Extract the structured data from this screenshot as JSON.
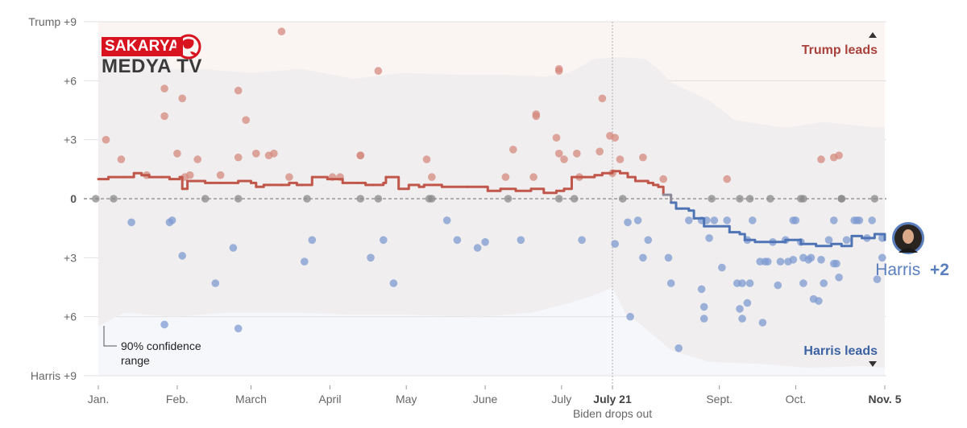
{
  "chart_data": {
    "type": "line",
    "title": "",
    "xlabel": "",
    "ylabel": "",
    "ylim": [
      -9,
      9
    ],
    "xlim_days": [
      0,
      309
    ],
    "y_ticks": [
      {
        "value": 9,
        "label": "Trump +9"
      },
      {
        "value": 6,
        "label": "+6"
      },
      {
        "value": 3,
        "label": "+3"
      },
      {
        "value": 0,
        "label": "0"
      },
      {
        "value": -3,
        "label": "+3"
      },
      {
        "value": -6,
        "label": "+6"
      },
      {
        "value": -9,
        "label": "Harris +9"
      }
    ],
    "x_ticks": [
      {
        "day": 0,
        "label": "Jan.",
        "bold": false
      },
      {
        "day": 31,
        "label": "Feb.",
        "bold": false
      },
      {
        "day": 60,
        "label": "March",
        "bold": false
      },
      {
        "day": 91,
        "label": "April",
        "bold": false
      },
      {
        "day": 121,
        "label": "May",
        "bold": false
      },
      {
        "day": 152,
        "label": "June",
        "bold": false
      },
      {
        "day": 182,
        "label": "July",
        "bold": false
      },
      {
        "day": 202,
        "label": "July 21",
        "bold": true,
        "sublabel": "Biden",
        "sublabel2": "drops out"
      },
      {
        "day": 244,
        "label": "Sept.",
        "bold": false
      },
      {
        "day": 274,
        "label": "Oct.",
        "bold": false
      },
      {
        "day": 309,
        "label": "Nov. 5",
        "bold": true
      }
    ],
    "annotations": {
      "trump_leads": "Trump leads",
      "harris_leads": "Harris leads",
      "ci_label_line1": "90% confidence",
      "ci_label_line2": "range",
      "current_name": "Harris",
      "current_value": "+2"
    },
    "colors": {
      "trump": "#c0574a",
      "harris": "#4f74b5",
      "trump_dot": "#d58a7f",
      "harris_dot": "#7f9bd1",
      "tie_dot": "#8a8a8a",
      "trump_bg": "#faf4f3",
      "harris_bg": "#f6f7fa",
      "band": "#efeded"
    },
    "average_line": [
      [
        0,
        1.0
      ],
      [
        3,
        1.0
      ],
      [
        4,
        1.1
      ],
      [
        10,
        1.1
      ],
      [
        14,
        1.3
      ],
      [
        17,
        1.2
      ],
      [
        20,
        1.1
      ],
      [
        25,
        1.1
      ],
      [
        28,
        1.0
      ],
      [
        32,
        1.1
      ],
      [
        33,
        0.5
      ],
      [
        35,
        0.9
      ],
      [
        38,
        0.9
      ],
      [
        42,
        0.8
      ],
      [
        48,
        0.8
      ],
      [
        55,
        0.9
      ],
      [
        60,
        0.8
      ],
      [
        62,
        0.6
      ],
      [
        65,
        0.7
      ],
      [
        72,
        0.7
      ],
      [
        75,
        0.8
      ],
      [
        78,
        0.7
      ],
      [
        80,
        0.7
      ],
      [
        84,
        1.1
      ],
      [
        90,
        1.0
      ],
      [
        96,
        0.8
      ],
      [
        102,
        0.8
      ],
      [
        105,
        0.7
      ],
      [
        108,
        0.7
      ],
      [
        112,
        0.8
      ],
      [
        113,
        1.1
      ],
      [
        118,
        0.5
      ],
      [
        122,
        0.7
      ],
      [
        126,
        0.6
      ],
      [
        128,
        0.7
      ],
      [
        135,
        0.6
      ],
      [
        145,
        0.6
      ],
      [
        152,
        0.6
      ],
      [
        153,
        0.4
      ],
      [
        158,
        0.5
      ],
      [
        164,
        0.4
      ],
      [
        170,
        0.5
      ],
      [
        175,
        0.3
      ],
      [
        180,
        0.4
      ],
      [
        183,
        0.5
      ],
      [
        186,
        1.1
      ],
      [
        190,
        1.1
      ],
      [
        195,
        1.2
      ],
      [
        198,
        1.3
      ],
      [
        202,
        1.4
      ],
      [
        205,
        1.3
      ],
      [
        208,
        1.1
      ],
      [
        211,
        0.9
      ],
      [
        216,
        0.8
      ],
      [
        218,
        0.7
      ],
      [
        220,
        0.6
      ],
      [
        222,
        0.2
      ],
      [
        225,
        -0.2
      ],
      [
        227,
        -0.5
      ],
      [
        232,
        -0.6
      ],
      [
        234,
        -1.0
      ],
      [
        238,
        -1.4
      ],
      [
        243,
        -1.4
      ],
      [
        248,
        -1.7
      ],
      [
        252,
        -1.8
      ],
      [
        254,
        -2.1
      ],
      [
        258,
        -2.2
      ],
      [
        265,
        -2.2
      ],
      [
        270,
        -2.1
      ],
      [
        276,
        -2.3
      ],
      [
        282,
        -2.4
      ],
      [
        288,
        -2.3
      ],
      [
        292,
        -2.4
      ],
      [
        296,
        -1.9
      ],
      [
        300,
        -2.0
      ],
      [
        305,
        -1.8
      ],
      [
        309,
        -2.1
      ]
    ],
    "band_upper": [
      [
        0,
        8.1
      ],
      [
        10,
        7.9
      ],
      [
        22,
        7.6
      ],
      [
        27,
        7.4
      ],
      [
        28,
        6.6
      ],
      [
        40,
        6.6
      ],
      [
        60,
        6.4
      ],
      [
        80,
        6.6
      ],
      [
        100,
        6.1
      ],
      [
        120,
        6.4
      ],
      [
        140,
        6.3
      ],
      [
        160,
        6.3
      ],
      [
        175,
        6.2
      ],
      [
        185,
        6.4
      ],
      [
        195,
        7.1
      ],
      [
        205,
        7.2
      ],
      [
        215,
        7.1
      ],
      [
        220,
        6.6
      ],
      [
        225,
        5.9
      ],
      [
        230,
        5.6
      ],
      [
        240,
        5.0
      ],
      [
        250,
        4.0
      ],
      [
        270,
        3.6
      ],
      [
        285,
        3.9
      ],
      [
        300,
        3.7
      ],
      [
        309,
        3.6
      ]
    ],
    "band_lower": [
      [
        0,
        -6.5
      ],
      [
        10,
        -5.8
      ],
      [
        30,
        -6.0
      ],
      [
        50,
        -5.8
      ],
      [
        80,
        -5.8
      ],
      [
        100,
        -5.9
      ],
      [
        120,
        -5.9
      ],
      [
        150,
        -6.0
      ],
      [
        170,
        -5.8
      ],
      [
        185,
        -5.3
      ],
      [
        195,
        -4.9
      ],
      [
        202,
        -4.5
      ],
      [
        207,
        -5.8
      ],
      [
        215,
        -6.6
      ],
      [
        225,
        -7.7
      ],
      [
        240,
        -8.3
      ],
      [
        260,
        -8.4
      ],
      [
        280,
        -8.6
      ],
      [
        300,
        -8.5
      ],
      [
        309,
        -8.6
      ]
    ],
    "polls": [
      {
        "d": 3,
        "v": 3.0
      },
      {
        "d": 9,
        "v": 2.0
      },
      {
        "d": 19,
        "v": 1.2
      },
      {
        "d": 26,
        "v": 5.6
      },
      {
        "d": 26,
        "v": 4.2
      },
      {
        "d": 31,
        "v": 2.3
      },
      {
        "d": 33,
        "v": 5.1
      },
      {
        "d": 34,
        "v": 1.1
      },
      {
        "d": 36,
        "v": 1.2
      },
      {
        "d": 39,
        "v": 2.0
      },
      {
        "d": 48,
        "v": 1.2
      },
      {
        "d": 55,
        "v": 5.5
      },
      {
        "d": 55,
        "v": 2.1
      },
      {
        "d": 58,
        "v": 4.0
      },
      {
        "d": 62,
        "v": 2.3
      },
      {
        "d": 67,
        "v": 2.2
      },
      {
        "d": 69,
        "v": 2.3
      },
      {
        "d": 72,
        "v": 8.5
      },
      {
        "d": 75,
        "v": 1.1
      },
      {
        "d": 92,
        "v": 1.1
      },
      {
        "d": 95,
        "v": 1.1
      },
      {
        "d": 103,
        "v": 2.2
      },
      {
        "d": 103,
        "v": 2.2
      },
      {
        "d": 110,
        "v": 6.5
      },
      {
        "d": 129,
        "v": 2.0
      },
      {
        "d": 131,
        "v": 1.1
      },
      {
        "d": 160,
        "v": 1.1
      },
      {
        "d": 163,
        "v": 2.5
      },
      {
        "d": 171,
        "v": 1.1
      },
      {
        "d": 172,
        "v": 4.3
      },
      {
        "d": 172,
        "v": 4.2
      },
      {
        "d": 180,
        "v": 3.1
      },
      {
        "d": 181,
        "v": 2.3
      },
      {
        "d": 183,
        "v": 2.0
      },
      {
        "d": 181,
        "v": 6.5
      },
      {
        "d": 181,
        "v": 6.6
      },
      {
        "d": 188,
        "v": 2.3
      },
      {
        "d": 189,
        "v": 1.1
      },
      {
        "d": 197,
        "v": 2.4
      },
      {
        "d": 198,
        "v": 5.1
      },
      {
        "d": 201,
        "v": 3.2
      },
      {
        "d": 203,
        "v": 3.1
      },
      {
        "d": 205,
        "v": 2.0
      },
      {
        "d": 202,
        "v": 1.3
      },
      {
        "d": 214,
        "v": 2.1
      },
      {
        "d": 222,
        "v": 1.0
      },
      {
        "d": 247,
        "v": 1.0
      },
      {
        "d": 284,
        "v": 2.0
      },
      {
        "d": 289,
        "v": 2.1
      },
      {
        "d": 291,
        "v": 2.2
      },
      {
        "d": -1,
        "v": 0
      },
      {
        "d": 6,
        "v": 0
      },
      {
        "d": 42,
        "v": 0
      },
      {
        "d": 55,
        "v": 0
      },
      {
        "d": 82,
        "v": 0
      },
      {
        "d": 103,
        "v": 0
      },
      {
        "d": 110,
        "v": 0
      },
      {
        "d": 130,
        "v": 0
      },
      {
        "d": 131,
        "v": 0
      },
      {
        "d": 161,
        "v": 0
      },
      {
        "d": 181,
        "v": 0
      },
      {
        "d": 187,
        "v": 0
      },
      {
        "d": 206,
        "v": 0
      },
      {
        "d": 241,
        "v": 0
      },
      {
        "d": 252,
        "v": 0
      },
      {
        "d": 256,
        "v": 0
      },
      {
        "d": 264,
        "v": 0
      },
      {
        "d": 276,
        "v": 0
      },
      {
        "d": 277,
        "v": 0
      },
      {
        "d": 292,
        "v": 0
      },
      {
        "d": 292,
        "v": 0
      },
      {
        "d": 305,
        "v": 0
      },
      {
        "d": 13,
        "v": -1.2
      },
      {
        "d": 28,
        "v": -1.2
      },
      {
        "d": 29,
        "v": -1.1
      },
      {
        "d": 33,
        "v": -2.9
      },
      {
        "d": 46,
        "v": -4.3
      },
      {
        "d": 53,
        "v": -2.5
      },
      {
        "d": 55,
        "v": -6.6
      },
      {
        "d": 26,
        "v": -6.4
      },
      {
        "d": 81,
        "v": -3.2
      },
      {
        "d": 84,
        "v": -2.1
      },
      {
        "d": 107,
        "v": -3.0
      },
      {
        "d": 112,
        "v": -2.1
      },
      {
        "d": 116,
        "v": -4.3
      },
      {
        "d": 137,
        "v": -1.1
      },
      {
        "d": 141,
        "v": -2.1
      },
      {
        "d": 149,
        "v": -2.5
      },
      {
        "d": 152,
        "v": -2.2
      },
      {
        "d": 166,
        "v": -2.1
      },
      {
        "d": 190,
        "v": -2.1
      },
      {
        "d": 203,
        "v": -2.3
      },
      {
        "d": 208,
        "v": -1.2
      },
      {
        "d": 209,
        "v": -6.0
      },
      {
        "d": 212,
        "v": -1.1
      },
      {
        "d": 214,
        "v": -3.0
      },
      {
        "d": 216,
        "v": -2.1
      },
      {
        "d": 224,
        "v": -3.0
      },
      {
        "d": 225,
        "v": -4.3
      },
      {
        "d": 228,
        "v": -7.6
      },
      {
        "d": 232,
        "v": -1.1
      },
      {
        "d": 237,
        "v": -1.1
      },
      {
        "d": 237,
        "v": -4.6
      },
      {
        "d": 238,
        "v": -6.1
      },
      {
        "d": 238,
        "v": -5.5
      },
      {
        "d": 239,
        "v": -1.1
      },
      {
        "d": 240,
        "v": -2.0
      },
      {
        "d": 242,
        "v": -1.1
      },
      {
        "d": 245,
        "v": -3.5
      },
      {
        "d": 247,
        "v": -1.1
      },
      {
        "d": 251,
        "v": -4.3
      },
      {
        "d": 252,
        "v": -5.6
      },
      {
        "d": 253,
        "v": -6.1
      },
      {
        "d": 253,
        "v": -4.3
      },
      {
        "d": 255,
        "v": -5.3
      },
      {
        "d": 255,
        "v": -2.1
      },
      {
        "d": 256,
        "v": -4.3
      },
      {
        "d": 257,
        "v": -1.1
      },
      {
        "d": 260,
        "v": -3.2
      },
      {
        "d": 261,
        "v": -6.3
      },
      {
        "d": 262,
        "v": -3.2
      },
      {
        "d": 263,
        "v": -3.2
      },
      {
        "d": 265,
        "v": -2.2
      },
      {
        "d": 267,
        "v": -4.4
      },
      {
        "d": 268,
        "v": -3.2
      },
      {
        "d": 270,
        "v": -2.1
      },
      {
        "d": 271,
        "v": -3.2
      },
      {
        "d": 273,
        "v": -3.1
      },
      {
        "d": 273,
        "v": -1.1
      },
      {
        "d": 274,
        "v": -1.1
      },
      {
        "d": 276,
        "v": -2.2
      },
      {
        "d": 277,
        "v": -3.0
      },
      {
        "d": 277,
        "v": -4.3
      },
      {
        "d": 279,
        "v": -3.1
      },
      {
        "d": 280,
        "v": -3.0
      },
      {
        "d": 281,
        "v": -5.1
      },
      {
        "d": 283,
        "v": -5.2
      },
      {
        "d": 284,
        "v": -3.1
      },
      {
        "d": 285,
        "v": -4.3
      },
      {
        "d": 287,
        "v": -2.1
      },
      {
        "d": 289,
        "v": -1.1
      },
      {
        "d": 289,
        "v": -3.3
      },
      {
        "d": 290,
        "v": -3.3
      },
      {
        "d": 291,
        "v": -4.0
      },
      {
        "d": 294,
        "v": -2.1
      },
      {
        "d": 297,
        "v": -1.1
      },
      {
        "d": 298,
        "v": -1.1
      },
      {
        "d": 299,
        "v": -1.1
      },
      {
        "d": 302,
        "v": -2.0
      },
      {
        "d": 304,
        "v": -1.1
      },
      {
        "d": 306,
        "v": -4.1
      },
      {
        "d": 308,
        "v": -2.0
      },
      {
        "d": 308,
        "v": -3.0
      }
    ]
  },
  "watermark": {
    "line1": "SAKARYA",
    "line2": "MEDYA TV"
  }
}
